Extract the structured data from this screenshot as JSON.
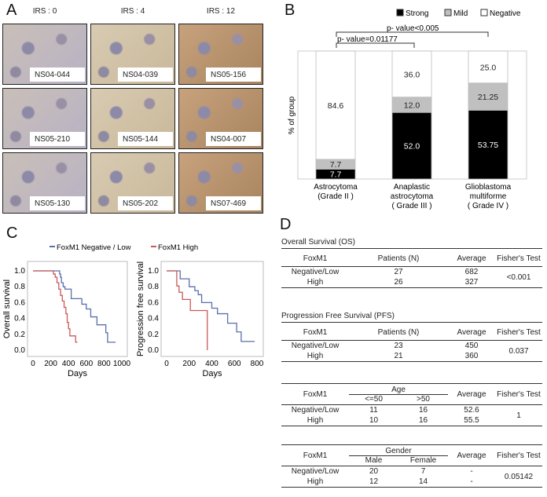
{
  "panels": {
    "a": "A",
    "b": "B",
    "c": "C",
    "d": "D"
  },
  "panel_a": {
    "irs_headers": [
      "IRS : 0",
      "IRS : 4",
      "IRS : 12"
    ],
    "samples": [
      [
        "NS04-044",
        "NS04-039",
        "NS05-156"
      ],
      [
        "NS05-210",
        "NS05-144",
        "NS04-007"
      ],
      [
        "NS05-130",
        "NS05-202",
        "NS07-469"
      ]
    ]
  },
  "chart_data": [
    {
      "type": "bar",
      "stacked": true,
      "ylabel": "% of group",
      "ylim": [
        0,
        100
      ],
      "categories": [
        "Astrocytoma\n(Grade II )",
        "Anaplastic\nastrocytoma\n( Grade III )",
        "Glioblastoma\nmultiforme\n( Grade IV )"
      ],
      "series": [
        {
          "name": "Strong",
          "color": "#000000",
          "values": [
            7.7,
            52.0,
            53.75
          ],
          "labels": [
            "7.7",
            "52.0",
            "53.75"
          ]
        },
        {
          "name": "Mild",
          "color": "#c0c0c0",
          "values": [
            7.7,
            12.0,
            21.25
          ],
          "labels": [
            "7.7",
            "12.0",
            "21.25"
          ]
        },
        {
          "name": "Negative",
          "color": "#ffffff",
          "values": [
            84.6,
            36.0,
            25.0
          ],
          "labels": [
            "84.6",
            "36.0",
            "25.0"
          ]
        }
      ],
      "annotations": [
        "p- value=0.01177",
        "p- value<0.005"
      ],
      "legend": "top-right"
    },
    {
      "type": "line",
      "step": true,
      "ylabel": "Overall survival",
      "xlabel": "Days",
      "xlim": [
        0,
        1000
      ],
      "ylim": [
        0,
        1
      ],
      "xticks": [
        "0",
        "200",
        "400",
        "600",
        "800",
        "1000"
      ],
      "yticks": [
        "0.0",
        "0.2",
        "0.4",
        "0.6",
        "0.8",
        "1.0"
      ],
      "series": [
        {
          "name": "FoxM1 Negative / Low",
          "color": "#5b6fae",
          "x": [
            0,
            300,
            310,
            320,
            340,
            360,
            380,
            430,
            550,
            600,
            650,
            720,
            820,
            840,
            930
          ],
          "y": [
            1,
            0.96,
            0.92,
            0.85,
            0.8,
            0.77,
            0.77,
            0.65,
            0.58,
            0.52,
            0.42,
            0.32,
            0.22,
            0.1,
            0.1
          ]
        },
        {
          "name": "FoxM1 High",
          "color": "#c85a5a",
          "x": [
            0,
            230,
            250,
            270,
            290,
            310,
            330,
            350,
            370,
            385,
            400,
            415,
            430,
            480,
            500
          ],
          "y": [
            1,
            0.96,
            0.92,
            0.85,
            0.77,
            0.69,
            0.62,
            0.54,
            0.46,
            0.35,
            0.27,
            0.18,
            0.18,
            0.1,
            0.1
          ]
        }
      ]
    },
    {
      "type": "line",
      "step": true,
      "ylabel": "Progression free survival",
      "xlabel": "Days",
      "xlim": [
        0,
        850
      ],
      "ylim": [
        0,
        1
      ],
      "xticks": [
        "0",
        "200",
        "400",
        "600",
        "800"
      ],
      "yticks": [
        "0.0",
        "0.2",
        "0.4",
        "0.6",
        "0.8",
        "1.0"
      ],
      "series": [
        {
          "name": "FoxM1 Negative / Low",
          "color": "#5b6fae",
          "x": [
            0,
            120,
            140,
            200,
            250,
            280,
            310,
            400,
            450,
            540,
            620,
            660,
            780
          ],
          "y": [
            1,
            0.9,
            0.9,
            0.8,
            0.75,
            0.7,
            0.6,
            0.53,
            0.46,
            0.34,
            0.23,
            0.11,
            0.11
          ]
        },
        {
          "name": "FoxM1 High",
          "color": "#c85a5a",
          "x": [
            0,
            90,
            110,
            140,
            210,
            360,
            360
          ],
          "y": [
            1,
            0.81,
            0.73,
            0.64,
            0.5,
            0.5,
            0
          ]
        }
      ]
    }
  ],
  "legend_c": [
    "FoxM1 Negative / Low",
    "FoxM1 High"
  ],
  "tables": {
    "os": {
      "title": "Overall Survival (OS)",
      "headers": [
        "FoxM1",
        "Patients  (N)",
        "Average",
        "Fisher's Test"
      ],
      "rows": [
        [
          "Negative/Low",
          "27",
          "682"
        ],
        [
          "High",
          "26",
          "327"
        ]
      ],
      "test": "<0.001"
    },
    "pfs": {
      "title": "Progression Free Survival (PFS)",
      "headers": [
        "FoxM1",
        "Patients  (N)",
        "Average",
        "Fisher's Test"
      ],
      "rows": [
        [
          "Negative/Low",
          "23",
          "450"
        ],
        [
          "High",
          "21",
          "360"
        ]
      ],
      "test": "0.037"
    },
    "age": {
      "group": "Age",
      "headers": [
        "FoxM1",
        "<=50",
        ">50",
        "Average",
        "Fisher's Test"
      ],
      "rows": [
        [
          "Negative/Low",
          "11",
          "16",
          "52.6"
        ],
        [
          "High",
          "10",
          "16",
          "55.5"
        ]
      ],
      "test": "1"
    },
    "gender": {
      "group": "Gender",
      "headers": [
        "FoxM1",
        "Male",
        "Female",
        "Average",
        "Fisher's Test"
      ],
      "rows": [
        [
          "Negative/Low",
          "20",
          "7",
          "-"
        ],
        [
          "High",
          "12",
          "14",
          "-"
        ]
      ],
      "test": "0.05142"
    }
  }
}
